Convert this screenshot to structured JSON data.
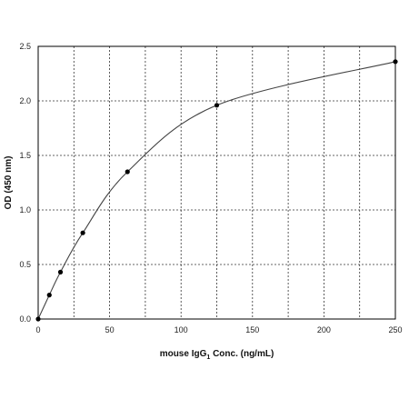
{
  "chart_data": {
    "type": "scatter",
    "title": "",
    "xlabel_prefix": "mouse IgG",
    "xlabel_subscript": "1",
    "xlabel_suffix": " Conc. (ng/mL)",
    "ylabel": "OD (450 nm)",
    "xlim": [
      0,
      250
    ],
    "ylim": [
      0,
      2.5
    ],
    "grid": true,
    "x_ticks": [
      "0",
      "50",
      "100",
      "150",
      "200",
      "250"
    ],
    "y_ticks": [
      "0.0",
      "0.5",
      "1.0",
      "1.5",
      "2.0",
      "2.5"
    ],
    "x_tick_values": [
      0,
      50,
      100,
      150,
      200,
      250
    ],
    "y_tick_values": [
      0,
      0.5,
      1.0,
      1.5,
      2.0,
      2.5
    ],
    "x_grid_values": [
      25,
      50,
      75,
      100,
      125,
      150,
      175,
      200,
      225
    ],
    "y_grid_values": [
      0.5,
      1.0,
      1.5,
      2.0
    ],
    "series": [
      {
        "points_x": [
          0,
          7.8,
          15.6,
          31.25,
          62.5,
          125,
          250
        ],
        "points_y": [
          0.0,
          0.22,
          0.43,
          0.79,
          1.35,
          1.96,
          2.36
        ],
        "color": "#000000",
        "fit_color": "#444444"
      }
    ]
  }
}
